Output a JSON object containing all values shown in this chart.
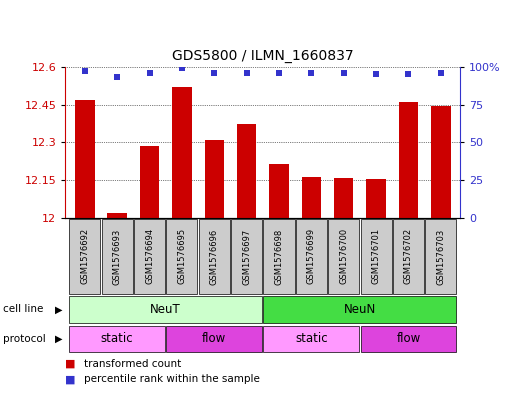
{
  "title": "GDS5800 / ILMN_1660837",
  "samples": [
    "GSM1576692",
    "GSM1576693",
    "GSM1576694",
    "GSM1576695",
    "GSM1576696",
    "GSM1576697",
    "GSM1576698",
    "GSM1576699",
    "GSM1576700",
    "GSM1576701",
    "GSM1576702",
    "GSM1576703"
  ],
  "bar_values": [
    12.47,
    12.02,
    12.285,
    12.52,
    12.31,
    12.375,
    12.215,
    12.165,
    12.16,
    12.155,
    12.46,
    12.445
  ],
  "percentile_values": [
    97,
    93,
    96,
    99,
    96,
    96,
    96,
    96,
    96,
    95,
    95,
    96
  ],
  "ylim_left": [
    12.0,
    12.6
  ],
  "ylim_right": [
    0,
    100
  ],
  "yticks_left": [
    12.0,
    12.15,
    12.3,
    12.45,
    12.6
  ],
  "yticks_left_labels": [
    "12",
    "12.15",
    "12.3",
    "12.45",
    "12.6"
  ],
  "yticks_right": [
    0,
    25,
    50,
    75,
    100
  ],
  "yticks_right_labels": [
    "0",
    "25",
    "50",
    "75",
    "100%"
  ],
  "bar_color": "#cc0000",
  "dot_color": "#3333cc",
  "neut_color": "#ccffcc",
  "neun_color": "#44dd44",
  "proto_light_color": "#ff99ff",
  "proto_dark_color": "#dd44dd",
  "sample_bg_color": "#cccccc",
  "grid_color": "#000000"
}
